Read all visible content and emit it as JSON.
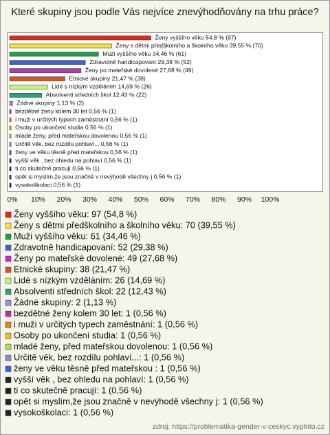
{
  "chart_data": {
    "type": "hbar",
    "title": "Které skupiny jsou podle Vás nejvíce znevýhodňovány na trhu práce?",
    "bar_labels": [
      "Ženy vyššího věku 54,8 % (97)",
      "Ženy s dětmi předškolního a školního věku 39,55 % (70)",
      "Muži vyššího věku 34,46 % (61)",
      "Zdravotně handicapovaní 29,38 % (52)",
      "Ženy po mateřské dovolené 27,68 % (49)",
      "Etnické skupiny 21,47 % (38)",
      "Lidé s nízkým vzděláním 14,69 % (26)",
      "Absolventi středních škol 12,43 % (22)",
      "Žádné skupiny 1,13 % (2)",
      "bezdětné ženy kolem 30 let 0,56 % (1)",
      "i muži v určitých typech zaměstnání 0,56 % (1)",
      "Osoby po ukončení studia 0,56 % (1)",
      "mladé ženy, před mateřskou dovolenou 0,56 % (1)",
      "Určitě věk, bez rozdílu pohlaví... 0,56 % (1)",
      "ženy ve věku těsně před mateřskou  0,56 % (1)",
      "vyšší věk , bez ohledu na pohlaví 0,56 % (1)",
      "ti co skutečně pracují 0,56 % (1)",
      "opět si myslím,že jsou značně v nevýhodě všechny j 0,56 % (1)",
      "vysokoškolaci 0,56 % (1)"
    ],
    "legend_labels": [
      "Ženy vyššího věku: 97 (54,8 %)",
      "Ženy s dětmi předškolního a školního věku: 70 (39,55 %)",
      "Muži vyššího věku: 61 (34,46 %)",
      "Zdravotně handicapovaní: 52 (29,38 %)",
      "Ženy po mateřské dovolené: 49 (27,68 %)",
      "Etnické skupiny: 38 (21,47 %)",
      "Lidé s nízkým vzděláním: 26 (14,69 %)",
      "Absolventi středních škol: 22 (12,43 %)",
      "Žádné skupiny: 2 (1,13 %)",
      "bezdětné ženy kolem 30 let: 1 (0,56 %)",
      "i muži v určitých typech zaměstnání: 1 (0,56 %)",
      "Osoby po ukončení studia: 1 (0,56 %)",
      "mladé ženy, před mateřskou dovolenou: 1 (0,56 %)",
      "Určitě věk, bez rozdílu pohlaví...: 1 (0,56 %)",
      "ženy ve věku těsně před mateřskou : 1 (0,56 %)",
      "vyšší věk , bez ohledu na pohlaví: 1 (0,56 %)",
      "ti co skutečně pracují: 1 (0,56 %)",
      "opět si myslím,že jsou značně v nevýhodě všechny j: 1 (0,56 %)",
      "vysokoškolaci: 1 (0,56 %)"
    ],
    "values": [
      54.8,
      39.55,
      34.46,
      29.38,
      27.68,
      21.47,
      14.69,
      12.43,
      1.13,
      0.56,
      0.56,
      0.56,
      0.56,
      0.56,
      0.56,
      0.56,
      0.56,
      0.56,
      0.56
    ],
    "colors": [
      "#e02a1a",
      "#f2e53a",
      "#1fa043",
      "#3f63d6",
      "#c02ec8",
      "#e0501e",
      "#c4f27e",
      "#2e9c86",
      "#9a8fd6",
      "#c0309a",
      "#e08820",
      "#e8c21a",
      "#a6e060",
      "#8a8ccc",
      "#3f63d6",
      "#222222",
      "#222222",
      "#222222",
      "#222222"
    ],
    "xlim": [
      0,
      100
    ],
    "xticks": [
      {
        "value": 0,
        "label": "0%"
      },
      {
        "value": 10,
        "label": "10%"
      },
      {
        "value": 20,
        "label": "20%"
      },
      {
        "value": 30,
        "label": "30%"
      },
      {
        "value": 40,
        "label": "40%"
      },
      {
        "value": 50,
        "label": "50%"
      },
      {
        "value": 60,
        "label": "60%"
      },
      {
        "value": 70,
        "label": "70%"
      },
      {
        "value": 80,
        "label": "80%"
      },
      {
        "value": 90,
        "label": "90%"
      },
      {
        "value": 100,
        "label": "100%"
      }
    ],
    "source": "zdroj: https://problematika-gender-v-ceskyc.vyplnto.cz"
  }
}
